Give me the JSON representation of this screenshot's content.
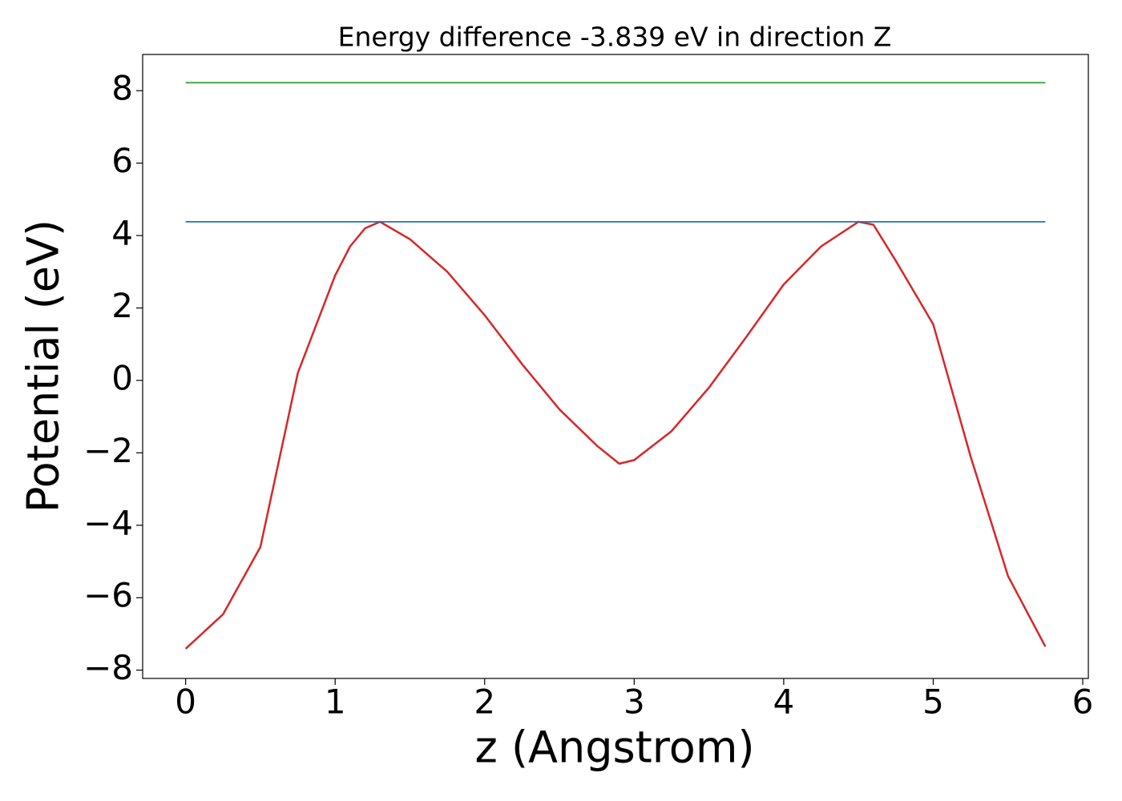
{
  "chart_data": {
    "type": "line",
    "title": "Energy difference -3.839 eV in direction Z",
    "x_label": "z (Angstrom)",
    "y_label": "Potential (eV)",
    "series": [
      {
        "color": "#d62728",
        "x": [
          0,
          0.25,
          0.5,
          0.75,
          1.0,
          1.1,
          1.2,
          1.3,
          1.5,
          1.75,
          2.0,
          2.25,
          2.5,
          2.75,
          2.9,
          3.0,
          3.25,
          3.5,
          3.75,
          4.0,
          4.25,
          4.5,
          4.6,
          4.75,
          5.0,
          5.25,
          5.5,
          5.75
        ],
        "values": [
          -7.41,
          -6.46,
          -4.6,
          0.2,
          2.9,
          3.7,
          4.2,
          4.38,
          3.9,
          3.0,
          1.8,
          0.45,
          -0.8,
          -1.8,
          -2.3,
          -2.2,
          -1.4,
          -0.2,
          1.2,
          2.65,
          3.7,
          4.38,
          4.3,
          3.3,
          1.55,
          -2.1,
          -5.4,
          -7.35
        ]
      },
      {
        "color": "#1f77b4",
        "x": [
          0,
          5.75
        ],
        "values": [
          4.38,
          4.38
        ]
      },
      {
        "color": "#2ca02c",
        "x": [
          0,
          5.75
        ],
        "values": [
          8.22,
          8.22
        ]
      }
    ],
    "xlim": [
      -0.2875,
      6.0375
    ],
    "ylim": [
      -8.23,
      9.0
    ],
    "xticks": [
      0,
      1,
      2,
      3,
      4,
      5,
      6
    ],
    "yticks": [
      {
        "value": -8,
        "label": "−8"
      },
      {
        "value": -6,
        "label": "−6"
      },
      {
        "value": -4,
        "label": "−4"
      },
      {
        "value": -2,
        "label": "−2"
      },
      0,
      2,
      4,
      6,
      8
    ]
  }
}
